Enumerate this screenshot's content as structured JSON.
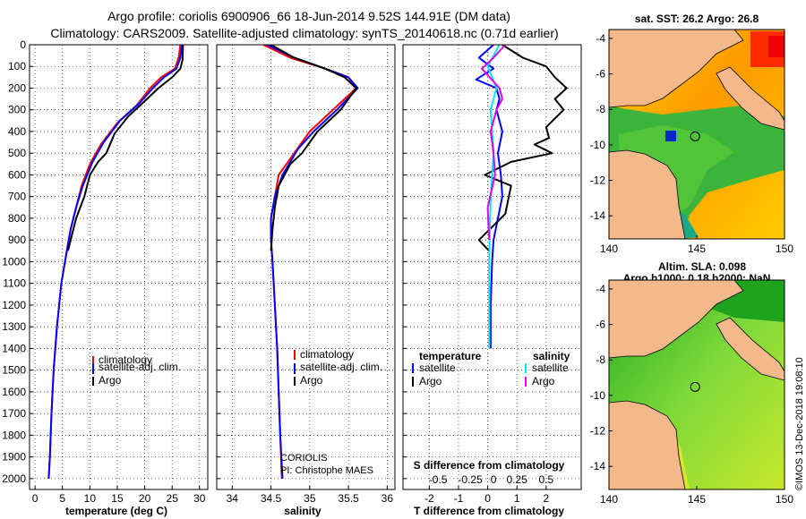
{
  "title_line1": "Argo profile: coriolis 6900906_66 18-Jun-2014 9.52S 144.91E (DM data)",
  "title_line2": "Climatology: CARS2009. Satellite-adjusted climatology: synTS_20140618.nc (0.71d earlier)",
  "colors": {
    "climatology": "#ff0000",
    "satellite": "#0000ff",
    "argo": "#000000",
    "s_satellite": "#00e5ff",
    "s_argo": "#e000e0",
    "land": "#f4b98a",
    "ocean_high": "#ffe000",
    "ocean_low": "#50c832"
  },
  "chart_data": [
    {
      "type": "line",
      "id": "temperature",
      "xlabel": "temperature (deg C)",
      "ylabel": "depth",
      "xlim": [
        -1,
        31.5
      ],
      "ylim": [
        2050,
        0
      ],
      "xticks": [
        0,
        5,
        10,
        15,
        20,
        25,
        30
      ],
      "yticks": [
        0,
        100,
        200,
        300,
        400,
        500,
        600,
        700,
        800,
        900,
        1000,
        1100,
        1200,
        1300,
        1400,
        1500,
        1600,
        1700,
        1800,
        1900,
        2000
      ],
      "series": [
        {
          "name": "climatology",
          "color": "#ff0000",
          "points": [
            [
              26.5,
              0
            ],
            [
              26.2,
              60
            ],
            [
              25.5,
              110
            ],
            [
              23,
              150
            ],
            [
              21,
              200
            ],
            [
              18.5,
              280
            ],
            [
              15,
              360
            ],
            [
              12,
              460
            ],
            [
              10,
              550
            ],
            [
              8.5,
              650
            ],
            [
              7.5,
              750
            ],
            [
              6.5,
              850
            ],
            [
              5.8,
              950
            ],
            [
              4.8,
              1100
            ],
            [
              4,
              1300
            ],
            [
              3.4,
              1500
            ],
            [
              3,
              1700
            ],
            [
              2.7,
              1900
            ],
            [
              2.5,
              2000
            ]
          ]
        },
        {
          "name": "satellite-adj. clim.",
          "color": "#0000ff",
          "points": [
            [
              26.8,
              0
            ],
            [
              26.5,
              60
            ],
            [
              25.8,
              110
            ],
            [
              23.5,
              150
            ],
            [
              21.5,
              200
            ],
            [
              19,
              270
            ],
            [
              15.5,
              350
            ],
            [
              12.5,
              450
            ],
            [
              10.5,
              540
            ],
            [
              8.7,
              650
            ],
            [
              7.5,
              750
            ],
            [
              6.5,
              850
            ],
            [
              5.8,
              950
            ],
            [
              4.8,
              1100
            ],
            [
              4,
              1300
            ],
            [
              3.4,
              1500
            ],
            [
              3,
              1700
            ],
            [
              2.7,
              1900
            ],
            [
              2.5,
              2000
            ]
          ]
        },
        {
          "name": "Argo",
          "color": "#000000",
          "points": [
            [
              27,
              0
            ],
            [
              26.9,
              70
            ],
            [
              26.5,
              110
            ],
            [
              25,
              150
            ],
            [
              22.5,
              200
            ],
            [
              20,
              260
            ],
            [
              17,
              330
            ],
            [
              14.5,
              410
            ],
            [
              13,
              500
            ],
            [
              11.5,
              540
            ],
            [
              10,
              600
            ],
            [
              9,
              700
            ],
            [
              7.5,
              800
            ],
            [
              6.5,
              900
            ],
            [
              6,
              950
            ]
          ]
        }
      ],
      "legend": [
        "climatology",
        "satellite-adj. clim.",
        "Argo"
      ],
      "legend_position": "bottom-right"
    },
    {
      "type": "line",
      "id": "salinity",
      "xlabel": "salinity",
      "ylabel": "depth",
      "xlim": [
        33.8,
        36.1
      ],
      "ylim": [
        2050,
        0
      ],
      "xticks": [
        34,
        34.5,
        35,
        35.5,
        36
      ],
      "series": [
        {
          "name": "climatology",
          "color": "#ff0000",
          "points": [
            [
              34.4,
              0
            ],
            [
              34.75,
              60
            ],
            [
              35.2,
              110
            ],
            [
              35.5,
              150
            ],
            [
              35.6,
              200
            ],
            [
              35.3,
              300
            ],
            [
              35.0,
              400
            ],
            [
              34.8,
              500
            ],
            [
              34.6,
              600
            ],
            [
              34.55,
              700
            ],
            [
              34.5,
              800
            ],
            [
              34.5,
              900
            ],
            [
              34.52,
              1000
            ],
            [
              34.55,
              1200
            ],
            [
              34.58,
              1400
            ],
            [
              34.6,
              1600
            ],
            [
              34.62,
              1800
            ],
            [
              34.64,
              2000
            ]
          ]
        },
        {
          "name": "satellite-adj. clim.",
          "color": "#0000ff",
          "points": [
            [
              34.45,
              0
            ],
            [
              34.8,
              60
            ],
            [
              35.2,
              110
            ],
            [
              35.5,
              150
            ],
            [
              35.62,
              200
            ],
            [
              35.35,
              300
            ],
            [
              35.05,
              400
            ],
            [
              34.85,
              480
            ],
            [
              34.65,
              600
            ],
            [
              34.55,
              700
            ],
            [
              34.5,
              800
            ],
            [
              34.5,
              900
            ],
            [
              34.52,
              1000
            ],
            [
              34.55,
              1200
            ],
            [
              34.58,
              1400
            ],
            [
              34.6,
              1600
            ],
            [
              34.62,
              1800
            ],
            [
              34.65,
              2000
            ]
          ]
        },
        {
          "name": "Argo",
          "color": "#000000",
          "points": [
            [
              34.5,
              0
            ],
            [
              34.8,
              60
            ],
            [
              35.2,
              110
            ],
            [
              35.45,
              150
            ],
            [
              35.6,
              200
            ],
            [
              35.5,
              250
            ],
            [
              35.4,
              300
            ],
            [
              35.1,
              400
            ],
            [
              34.9,
              500
            ],
            [
              34.75,
              550
            ],
            [
              34.6,
              650
            ],
            [
              34.55,
              750
            ],
            [
              34.52,
              850
            ],
            [
              34.5,
              950
            ]
          ]
        }
      ],
      "legend": [
        "climatology",
        "satellite-adj. clim.",
        "Argo"
      ],
      "legend_position": "bottom-right",
      "annotation": [
        "CORIOLIS",
        "PI: Christophe MAES"
      ]
    },
    {
      "type": "line",
      "id": "difference",
      "xlabel": "T difference from climatology",
      "x2label": "S difference from climatology",
      "xlim": [
        -2.9,
        3.2
      ],
      "ylim": [
        2050,
        0
      ],
      "xticks": [
        -2,
        -1,
        0,
        1,
        2
      ],
      "x2ticks": [
        "-0.5",
        "-0.25",
        "0",
        "0.25",
        "0.5"
      ],
      "series": [
        {
          "name": "T satellite",
          "color": "#0000ff",
          "points": [
            [
              0.2,
              0
            ],
            [
              -0.3,
              60
            ],
            [
              0.2,
              110
            ],
            [
              -0.4,
              160
            ],
            [
              0.3,
              200
            ],
            [
              0.4,
              250
            ],
            [
              0.3,
              300
            ],
            [
              0.5,
              400
            ],
            [
              0.35,
              500
            ],
            [
              0.45,
              600
            ],
            [
              0.5,
              700
            ],
            [
              0.35,
              800
            ],
            [
              0.2,
              900
            ],
            [
              0.15,
              1000
            ],
            [
              0.1,
              1200
            ],
            [
              0.1,
              1400
            ]
          ]
        },
        {
          "name": "T Argo",
          "color": "#000000",
          "points": [
            [
              0.5,
              0
            ],
            [
              1.2,
              60
            ],
            [
              2,
              100
            ],
            [
              2.3,
              150
            ],
            [
              2.7,
              200
            ],
            [
              2.3,
              250
            ],
            [
              2.6,
              300
            ],
            [
              2,
              380
            ],
            [
              2.1,
              430
            ],
            [
              1.6,
              460
            ],
            [
              2.2,
              500
            ],
            [
              0.8,
              540
            ],
            [
              -0.1,
              600
            ],
            [
              0.8,
              650
            ],
            [
              0.6,
              780
            ],
            [
              -0.3,
              900
            ],
            [
              0.05,
              950
            ]
          ]
        },
        {
          "name": "S satellite",
          "color": "#00e5ff",
          "points": [
            [
              0.4,
              0
            ],
            [
              0,
              100
            ],
            [
              0.3,
              200
            ],
            [
              0.1,
              300
            ],
            [
              0.2,
              500
            ],
            [
              0.1,
              700
            ],
            [
              0.05,
              1000
            ],
            [
              0.05,
              1400
            ]
          ]
        },
        {
          "name": "S Argo",
          "color": "#e000e0",
          "points": [
            [
              0.6,
              0
            ],
            [
              0.2,
              60
            ],
            [
              -0.2,
              110
            ],
            [
              0.4,
              200
            ],
            [
              0.5,
              250
            ],
            [
              0.3,
              300
            ],
            [
              0.1,
              400
            ],
            [
              0.2,
              500
            ],
            [
              0.25,
              600
            ],
            [
              0,
              750
            ],
            [
              0.05,
              900
            ]
          ]
        }
      ],
      "legend_left_title": "temperature",
      "legend_right_title": "salinity",
      "legend_left": [
        "satellite",
        "Argo"
      ],
      "legend_right": [
        "satellite",
        "Argo"
      ],
      "legend_position": "bottom"
    }
  ],
  "maps": [
    {
      "id": "sst-map",
      "title": "sat. SST: 26.2 Argo: 26.8",
      "xticks": [
        140,
        145,
        150
      ],
      "yticks": [
        -4,
        -6,
        -8,
        -10,
        -12,
        -14
      ],
      "xlim": [
        140,
        150
      ],
      "ylim": [
        -3.5,
        -15.3
      ],
      "argo_lon": 144.91,
      "argo_lat": -9.52
    },
    {
      "id": "sla-map",
      "title_line1": "Altim. SLA: 0.098",
      "title_line2": "Argo h1000: 0.18 h2000: NaN",
      "xticks": [
        140,
        145,
        150
      ],
      "yticks": [
        -4,
        -6,
        -8,
        -10,
        -12,
        -14
      ],
      "xlim": [
        140,
        150
      ],
      "ylim": [
        -3.5,
        -15.3
      ],
      "argo_lon": 144.91,
      "argo_lat": -9.52
    }
  ],
  "footer": "©IMOS 13-Dec-2018 19:08:10"
}
